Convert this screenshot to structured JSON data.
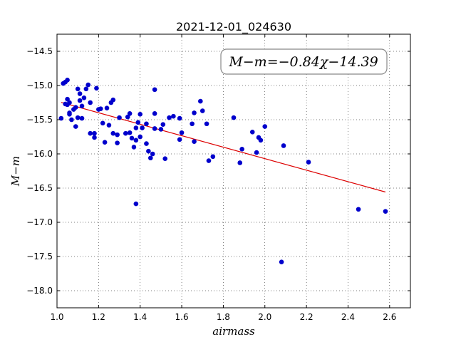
{
  "chart_data": {
    "type": "scatter",
    "title": "2021-12-01_024630",
    "xlabel": "airmass",
    "ylabel": "M−m",
    "xlim": [
      1.0,
      2.7
    ],
    "ylim": [
      -18.25,
      -14.25
    ],
    "xticks": [
      1.0,
      1.2,
      1.4,
      1.6,
      1.8,
      2.0,
      2.2,
      2.4,
      2.6
    ],
    "xtick_labels": [
      "1.0",
      "1.2",
      "1.4",
      "1.6",
      "1.8",
      "2.0",
      "2.2",
      "2.4",
      "2.6"
    ],
    "yticks": [
      -14.5,
      -15.0,
      -15.5,
      -16.0,
      -16.5,
      -17.0,
      -17.5,
      -18.0
    ],
    "ytick_labels": [
      "−14.5",
      "−15.0",
      "−15.5",
      "−16.0",
      "−16.5",
      "−17.0",
      "−17.5",
      "−18.0"
    ],
    "grid": true,
    "annotation": "M−m=−0.84χ−14.39",
    "point_color": "#0000cc",
    "fit_color": "#dd0000",
    "fit": {
      "slope": -0.84,
      "intercept": -14.39,
      "x_range": [
        1.02,
        2.58
      ]
    },
    "points": [
      [
        1.02,
        -15.48
      ],
      [
        1.03,
        -14.97
      ],
      [
        1.04,
        -14.95
      ],
      [
        1.05,
        -14.92
      ],
      [
        1.04,
        -15.27
      ],
      [
        1.05,
        -15.2
      ],
      [
        1.05,
        -15.28
      ],
      [
        1.06,
        -15.25
      ],
      [
        1.06,
        -15.4
      ],
      [
        1.06,
        -15.42
      ],
      [
        1.07,
        -15.5
      ],
      [
        1.08,
        -15.35
      ],
      [
        1.09,
        -15.32
      ],
      [
        1.09,
        -15.6
      ],
      [
        1.1,
        -15.47
      ],
      [
        1.1,
        -15.05
      ],
      [
        1.11,
        -15.12
      ],
      [
        1.11,
        -15.22
      ],
      [
        1.12,
        -15.3
      ],
      [
        1.12,
        -15.48
      ],
      [
        1.13,
        -15.18
      ],
      [
        1.14,
        -15.05
      ],
      [
        1.15,
        -14.99
      ],
      [
        1.16,
        -15.25
      ],
      [
        1.16,
        -15.7
      ],
      [
        1.18,
        -15.7
      ],
      [
        1.18,
        -15.76
      ],
      [
        1.19,
        -15.04
      ],
      [
        1.2,
        -15.35
      ],
      [
        1.21,
        -15.34
      ],
      [
        1.22,
        -15.55
      ],
      [
        1.23,
        -15.83
      ],
      [
        1.24,
        -15.33
      ],
      [
        1.25,
        -15.58
      ],
      [
        1.26,
        -15.25
      ],
      [
        1.27,
        -15.21
      ],
      [
        1.27,
        -15.7
      ],
      [
        1.29,
        -15.72
      ],
      [
        1.29,
        -15.84
      ],
      [
        1.3,
        -15.47
      ],
      [
        1.33,
        -15.7
      ],
      [
        1.34,
        -15.46
      ],
      [
        1.35,
        -15.41
      ],
      [
        1.35,
        -15.69
      ],
      [
        1.36,
        -15.77
      ],
      [
        1.37,
        -15.9
      ],
      [
        1.38,
        -15.8
      ],
      [
        1.38,
        -15.62
      ],
      [
        1.39,
        -15.54
      ],
      [
        1.38,
        -16.73
      ],
      [
        1.4,
        -15.42
      ],
      [
        1.4,
        -15.75
      ],
      [
        1.41,
        -15.62
      ],
      [
        1.43,
        -15.56
      ],
      [
        1.43,
        -15.85
      ],
      [
        1.44,
        -15.96
      ],
      [
        1.45,
        -16.06
      ],
      [
        1.46,
        -16.0
      ],
      [
        1.47,
        -15.63
      ],
      [
        1.47,
        -15.41
      ],
      [
        1.47,
        -15.06
      ],
      [
        1.5,
        -15.64
      ],
      [
        1.51,
        -15.57
      ],
      [
        1.52,
        -16.07
      ],
      [
        1.54,
        -15.47
      ],
      [
        1.56,
        -15.45
      ],
      [
        1.59,
        -15.48
      ],
      [
        1.59,
        -15.79
      ],
      [
        1.6,
        -15.69
      ],
      [
        1.65,
        -15.56
      ],
      [
        1.66,
        -15.4
      ],
      [
        1.66,
        -15.82
      ],
      [
        1.69,
        -15.23
      ],
      [
        1.7,
        -15.37
      ],
      [
        1.72,
        -15.56
      ],
      [
        1.73,
        -16.1
      ],
      [
        1.75,
        -16.04
      ],
      [
        1.85,
        -15.47
      ],
      [
        1.88,
        -16.13
      ],
      [
        1.89,
        -15.93
      ],
      [
        1.94,
        -15.68
      ],
      [
        1.96,
        -15.98
      ],
      [
        1.97,
        -15.76
      ],
      [
        1.98,
        -15.8
      ],
      [
        2.0,
        -15.6
      ],
      [
        2.08,
        -17.58
      ],
      [
        2.09,
        -15.88
      ],
      [
        2.21,
        -16.12
      ],
      [
        2.45,
        -16.81
      ],
      [
        2.58,
        -16.84
      ]
    ]
  }
}
